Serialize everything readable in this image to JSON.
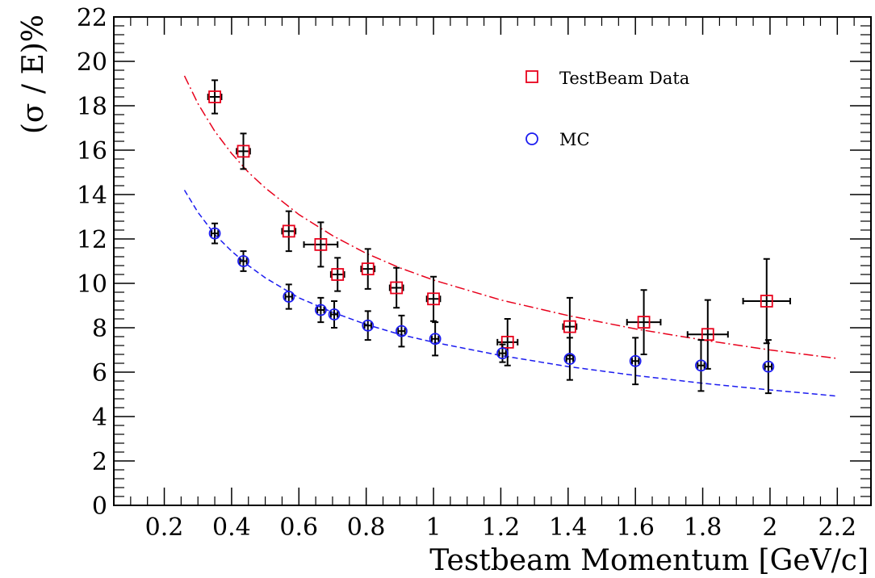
{
  "chart_data": {
    "type": "scatter",
    "xlabel": "Testbeam Momentum [GeV/c]",
    "ylabel": "(σ / E)%",
    "xlim": [
      0.05,
      2.3
    ],
    "ylim": [
      0,
      22
    ],
    "x_ticks": [
      0.2,
      0.4,
      0.6,
      0.8,
      1,
      1.2,
      1.4,
      1.6,
      1.8,
      2,
      2.2
    ],
    "x_tick_labels": [
      "0.2",
      "0.4",
      "0.6",
      "0.8",
      "1",
      "1.2",
      "1.4",
      "1.6",
      "1.8",
      "2",
      "2.2"
    ],
    "y_ticks": [
      0,
      2,
      4,
      6,
      8,
      10,
      12,
      14,
      16,
      18,
      20,
      22
    ],
    "y_tick_labels": [
      "0",
      "2",
      "4",
      "6",
      "8",
      "10",
      "12",
      "14",
      "16",
      "18",
      "20",
      "22"
    ],
    "grid": false,
    "legend_position": "top-right",
    "series": [
      {
        "name": "TestBeam Data",
        "marker": "open-square",
        "color": "#e8001b",
        "x": [
          0.35,
          0.435,
          0.57,
          0.665,
          0.715,
          0.805,
          0.89,
          1.0,
          1.22,
          1.405,
          1.625,
          1.815,
          1.99
        ],
        "y": [
          18.4,
          15.95,
          12.35,
          11.75,
          10.4,
          10.65,
          9.8,
          9.3,
          7.35,
          8.05,
          8.25,
          7.7,
          9.2
        ],
        "xerr": [
          0.02,
          0.02,
          0.02,
          0.05,
          0.02,
          0.02,
          0.02,
          0.02,
          0.03,
          0.02,
          0.05,
          0.06,
          0.07
        ],
        "yerr": [
          0.75,
          0.8,
          0.9,
          1.0,
          0.75,
          0.9,
          0.9,
          1.0,
          1.05,
          1.3,
          1.45,
          1.55,
          1.9
        ]
      },
      {
        "name": "MC",
        "marker": "open-circle",
        "color": "#1c1cf0",
        "x": [
          0.35,
          0.435,
          0.57,
          0.665,
          0.705,
          0.805,
          0.905,
          1.005,
          1.205,
          1.405,
          1.6,
          1.795,
          1.995
        ],
        "y": [
          12.25,
          11.0,
          9.4,
          8.8,
          8.6,
          8.1,
          7.85,
          7.5,
          6.85,
          6.6,
          6.5,
          6.3,
          6.25
        ],
        "xerr": [
          0.01,
          0.01,
          0.01,
          0.01,
          0.01,
          0.01,
          0.01,
          0.01,
          0.01,
          0.01,
          0.01,
          0.01,
          0.01
        ],
        "yerr": [
          0.45,
          0.45,
          0.55,
          0.55,
          0.6,
          0.65,
          0.7,
          0.75,
          0.4,
          0.95,
          1.05,
          1.15,
          1.2
        ]
      }
    ],
    "fits": [
      {
        "series": "TestBeam Data",
        "style": "dash-dot",
        "color": "#e8001b",
        "x": [
          0.26,
          0.3,
          0.35,
          0.4,
          0.45,
          0.5,
          0.6,
          0.7,
          0.8,
          0.9,
          1.0,
          1.2,
          1.4,
          1.6,
          1.8,
          2.0,
          2.2
        ],
        "y": [
          19.35,
          18.1,
          16.85,
          15.85,
          15.0,
          14.3,
          13.1,
          12.15,
          11.35,
          10.7,
          10.15,
          9.25,
          8.55,
          7.95,
          7.45,
          7.0,
          6.62
        ]
      },
      {
        "series": "MC",
        "style": "dashed",
        "color": "#1c1cf0",
        "x": [
          0.26,
          0.3,
          0.35,
          0.4,
          0.45,
          0.5,
          0.6,
          0.7,
          0.8,
          0.9,
          1.0,
          1.2,
          1.4,
          1.6,
          1.8,
          2.0,
          2.2
        ],
        "y": [
          14.2,
          13.2,
          12.2,
          11.45,
          10.8,
          10.25,
          9.35,
          8.7,
          8.15,
          7.7,
          7.35,
          6.75,
          6.25,
          5.85,
          5.5,
          5.2,
          4.92
        ]
      }
    ]
  }
}
